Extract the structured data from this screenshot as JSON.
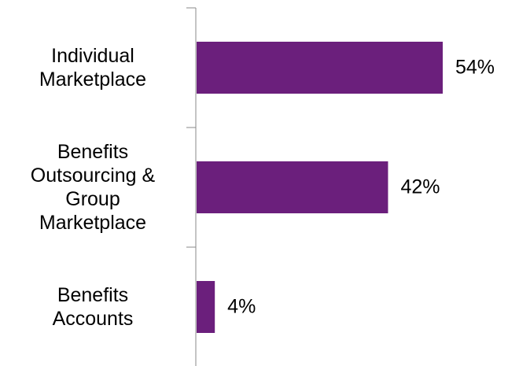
{
  "chart_data": {
    "type": "bar",
    "orientation": "horizontal",
    "categories": [
      "Individual\nMarketplace",
      "Benefits\nOutsourcing &\nGroup\nMarketplace",
      "Benefits\nAccounts"
    ],
    "values": [
      54,
      42,
      4
    ],
    "value_labels": [
      "54%",
      "42%",
      "4%"
    ],
    "color": "#6b1f7c"
  }
}
